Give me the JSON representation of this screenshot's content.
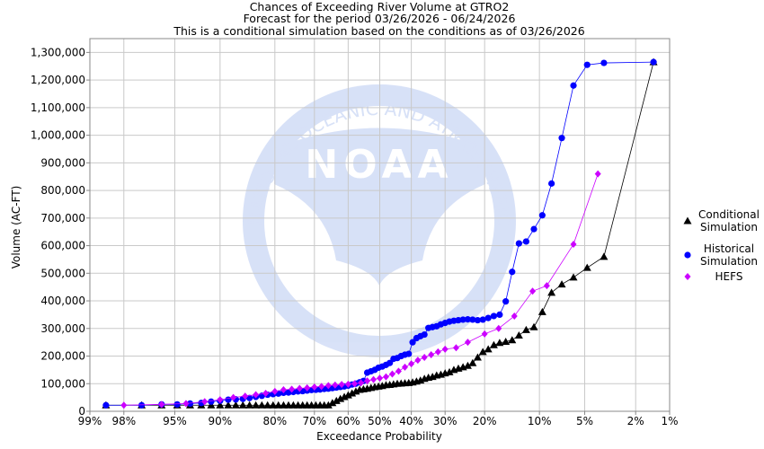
{
  "chart_data": {
    "type": "line",
    "title": "Chances of Exceeding River Volume at GTRO2",
    "subtitle_1": "Forecast for the period 03/26/2026 - 06/24/2026",
    "subtitle_2": "This is a conditional simulation based on the conditions as of 03/26/2026",
    "xlabel": "Exceedance Probability",
    "ylabel": "Volume (AC-FT)",
    "x_scale": "normal-probability",
    "x_ticks": [
      99,
      98,
      95,
      90,
      80,
      70,
      60,
      50,
      40,
      30,
      20,
      10,
      5,
      2,
      1
    ],
    "x_tick_labels": [
      "99%",
      "98%",
      "95%",
      "90%",
      "80%",
      "70%",
      "60%",
      "50%",
      "40%",
      "30%",
      "20%",
      "10%",
      "5%",
      "2%",
      "1%"
    ],
    "ylim": [
      0,
      1350000
    ],
    "y_ticks": [
      0,
      100000,
      200000,
      300000,
      400000,
      500000,
      600000,
      700000,
      800000,
      900000,
      1000000,
      1100000,
      1200000,
      1300000
    ],
    "y_tick_labels": [
      "0",
      "100,000",
      "200,000",
      "300,000",
      "400,000",
      "500,000",
      "600,000",
      "700,000",
      "800,000",
      "900,000",
      "1,000,000",
      "1,100,000",
      "1,200,000",
      "1,300,000"
    ],
    "grid": true,
    "legend_position": "right",
    "watermark_text": "NATIONAL OCEANIC AND ATMOSPHERIC ADMINISTRATION · U.S. DEPARTMENT OF COMMERCE",
    "watermark_logo": "NOAA",
    "series": [
      {
        "name": "Conditional Simulation",
        "legend_lines": [
          "Conditional",
          "Simulation"
        ],
        "color": "#000000",
        "marker": "triangle",
        "points": [
          [
            98.6,
            22000
          ],
          [
            97.2,
            22000
          ],
          [
            96.0,
            22000
          ],
          [
            94.8,
            22000
          ],
          [
            93.6,
            22000
          ],
          [
            92.4,
            22000
          ],
          [
            91.2,
            22000
          ],
          [
            90.0,
            22000
          ],
          [
            88.8,
            22000
          ],
          [
            87.6,
            22000
          ],
          [
            86.4,
            22000
          ],
          [
            85.2,
            22000
          ],
          [
            84.0,
            22000
          ],
          [
            82.8,
            22000
          ],
          [
            81.6,
            22000
          ],
          [
            80.4,
            22000
          ],
          [
            79.2,
            22000
          ],
          [
            78.0,
            22000
          ],
          [
            76.8,
            22000
          ],
          [
            75.6,
            22000
          ],
          [
            74.4,
            22000
          ],
          [
            73.2,
            22000
          ],
          [
            72.0,
            22000
          ],
          [
            70.8,
            22000
          ],
          [
            69.6,
            22000
          ],
          [
            68.4,
            22000
          ],
          [
            67.2,
            22000
          ],
          [
            66.0,
            22000
          ],
          [
            64.8,
            30000
          ],
          [
            63.6,
            38000
          ],
          [
            62.4,
            45000
          ],
          [
            61.2,
            52000
          ],
          [
            60.0,
            58000
          ],
          [
            58.8,
            65000
          ],
          [
            57.6,
            72000
          ],
          [
            56.4,
            78000
          ],
          [
            55.2,
            80000
          ],
          [
            54.0,
            82000
          ],
          [
            52.8,
            85000
          ],
          [
            51.6,
            88000
          ],
          [
            50.4,
            90000
          ],
          [
            49.2,
            92000
          ],
          [
            48.0,
            95000
          ],
          [
            46.8,
            96000
          ],
          [
            45.6,
            98000
          ],
          [
            44.4,
            100000
          ],
          [
            43.2,
            101000
          ],
          [
            42.0,
            102000
          ],
          [
            40.8,
            103000
          ],
          [
            39.6,
            105000
          ],
          [
            38.4,
            108000
          ],
          [
            37.2,
            112000
          ],
          [
            36.0,
            118000
          ],
          [
            34.8,
            122000
          ],
          [
            33.6,
            125000
          ],
          [
            32.4,
            130000
          ],
          [
            31.2,
            133000
          ],
          [
            30.0,
            138000
          ],
          [
            28.8,
            142000
          ],
          [
            27.6,
            150000
          ],
          [
            26.4,
            155000
          ],
          [
            25.2,
            160000
          ],
          [
            24.0,
            165000
          ],
          [
            22.8,
            175000
          ],
          [
            21.6,
            195000
          ],
          [
            20.4,
            215000
          ],
          [
            19.2,
            225000
          ],
          [
            18.0,
            240000
          ],
          [
            16.8,
            248000
          ],
          [
            15.6,
            252000
          ],
          [
            14.4,
            258000
          ],
          [
            13.2,
            275000
          ],
          [
            12.0,
            295000
          ],
          [
            10.8,
            305000
          ],
          [
            9.6,
            360000
          ],
          [
            8.4,
            430000
          ],
          [
            7.2,
            460000
          ],
          [
            6.0,
            485000
          ],
          [
            4.8,
            520000
          ],
          [
            3.6,
            560000
          ],
          [
            1.4,
            1265000
          ]
        ]
      },
      {
        "name": "Historical Simulation",
        "legend_lines": [
          "Historical",
          "Simulation"
        ],
        "color": "#0000ff",
        "marker": "circle",
        "points": [
          [
            98.6,
            22000
          ],
          [
            97.2,
            22000
          ],
          [
            96.0,
            25000
          ],
          [
            94.8,
            25000
          ],
          [
            93.6,
            28000
          ],
          [
            92.4,
            30000
          ],
          [
            91.2,
            35000
          ],
          [
            90.0,
            38000
          ],
          [
            88.8,
            42000
          ],
          [
            87.6,
            43000
          ],
          [
            86.4,
            45000
          ],
          [
            85.2,
            48000
          ],
          [
            84.0,
            52000
          ],
          [
            82.8,
            56000
          ],
          [
            81.6,
            60000
          ],
          [
            80.4,
            62000
          ],
          [
            79.2,
            64000
          ],
          [
            78.0,
            67000
          ],
          [
            76.8,
            68000
          ],
          [
            75.6,
            70000
          ],
          [
            74.4,
            72000
          ],
          [
            73.2,
            73000
          ],
          [
            72.0,
            75000
          ],
          [
            70.8,
            77000
          ],
          [
            69.6,
            78000
          ],
          [
            68.4,
            79000
          ],
          [
            67.2,
            81000
          ],
          [
            66.0,
            82000
          ],
          [
            64.8,
            84000
          ],
          [
            63.6,
            86000
          ],
          [
            62.4,
            88000
          ],
          [
            61.2,
            90000
          ],
          [
            60.0,
            93000
          ],
          [
            58.8,
            97000
          ],
          [
            57.6,
            100000
          ],
          [
            56.4,
            105000
          ],
          [
            55.2,
            110000
          ],
          [
            54.0,
            140000
          ],
          [
            52.8,
            145000
          ],
          [
            51.6,
            150000
          ],
          [
            50.4,
            158000
          ],
          [
            49.2,
            162000
          ],
          [
            48.0,
            168000
          ],
          [
            46.8,
            175000
          ],
          [
            45.6,
            190000
          ],
          [
            44.4,
            193000
          ],
          [
            43.2,
            200000
          ],
          [
            42.0,
            205000
          ],
          [
            40.8,
            208000
          ],
          [
            39.6,
            250000
          ],
          [
            38.4,
            265000
          ],
          [
            37.2,
            272000
          ],
          [
            36.0,
            278000
          ],
          [
            34.8,
            302000
          ],
          [
            33.6,
            305000
          ],
          [
            32.4,
            308000
          ],
          [
            31.2,
            315000
          ],
          [
            30.0,
            320000
          ],
          [
            28.8,
            325000
          ],
          [
            27.6,
            328000
          ],
          [
            26.4,
            330000
          ],
          [
            25.2,
            332000
          ],
          [
            24.0,
            333000
          ],
          [
            22.8,
            332000
          ],
          [
            21.6,
            330000
          ],
          [
            20.4,
            332000
          ],
          [
            19.2,
            338000
          ],
          [
            18.0,
            345000
          ],
          [
            16.8,
            350000
          ],
          [
            15.6,
            398000
          ],
          [
            14.4,
            505000
          ],
          [
            13.2,
            608000
          ],
          [
            12.0,
            615000
          ],
          [
            10.8,
            660000
          ],
          [
            9.6,
            710000
          ],
          [
            8.4,
            825000
          ],
          [
            7.2,
            990000
          ],
          [
            6.0,
            1180000
          ],
          [
            4.8,
            1255000
          ],
          [
            3.6,
            1262000
          ],
          [
            1.4,
            1265000
          ]
        ]
      },
      {
        "name": "HEFS",
        "legend_lines": [
          "HEFS"
        ],
        "color": "#cc00ff",
        "marker": "diamond",
        "points": [
          [
            98.0,
            22000
          ],
          [
            96.0,
            25000
          ],
          [
            94.0,
            28000
          ],
          [
            92.0,
            35000
          ],
          [
            90.0,
            42000
          ],
          [
            88.0,
            50000
          ],
          [
            86.0,
            55000
          ],
          [
            84.0,
            60000
          ],
          [
            82.0,
            65000
          ],
          [
            80.0,
            72000
          ],
          [
            78.0,
            78000
          ],
          [
            76.0,
            80000
          ],
          [
            74.0,
            83000
          ],
          [
            72.0,
            85000
          ],
          [
            70.0,
            88000
          ],
          [
            68.0,
            90000
          ],
          [
            66.0,
            93000
          ],
          [
            64.0,
            95000
          ],
          [
            62.0,
            97000
          ],
          [
            60.0,
            98000
          ],
          [
            58.0,
            100000
          ],
          [
            56.0,
            103000
          ],
          [
            54.0,
            110000
          ],
          [
            52.0,
            115000
          ],
          [
            50.0,
            120000
          ],
          [
            48.0,
            125000
          ],
          [
            46.0,
            135000
          ],
          [
            44.0,
            145000
          ],
          [
            42.0,
            160000
          ],
          [
            40.0,
            172000
          ],
          [
            38.0,
            185000
          ],
          [
            36.0,
            195000
          ],
          [
            34.0,
            205000
          ],
          [
            32.0,
            215000
          ],
          [
            30.0,
            225000
          ],
          [
            27.0,
            230000
          ],
          [
            24.0,
            250000
          ],
          [
            20.0,
            280000
          ],
          [
            17.0,
            300000
          ],
          [
            14.0,
            345000
          ],
          [
            11.0,
            435000
          ],
          [
            9.0,
            455000
          ],
          [
            6.0,
            605000
          ],
          [
            4.0,
            860000
          ]
        ]
      }
    ]
  }
}
